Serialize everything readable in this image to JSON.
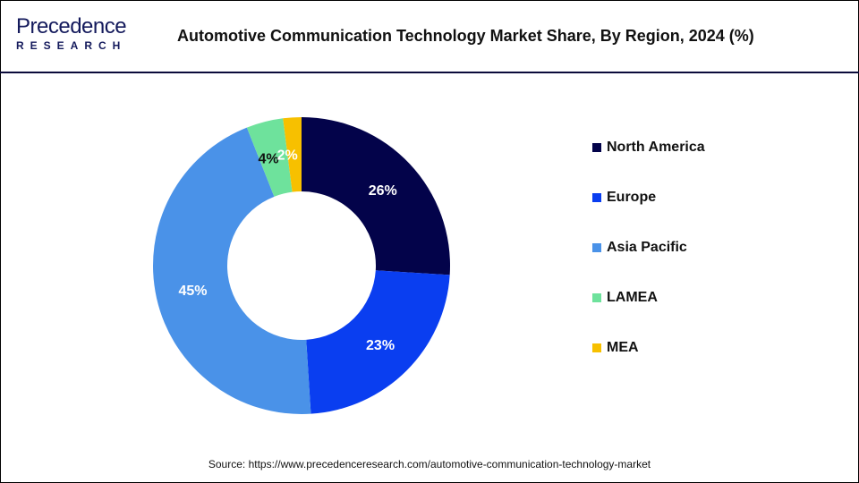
{
  "logo": {
    "text_top": "Precedence",
    "text_bottom": "RESEARCH"
  },
  "header": {
    "title": "Automotive Communication Technology Market Share, By Region, 2024 (%)"
  },
  "chart_data": {
    "type": "pie",
    "donut": true,
    "title": "Automotive Communication Technology Market Share, By Region, 2024 (%)",
    "categories": [
      "North America",
      "Europe",
      "Asia Pacific",
      "LAMEA",
      "MEA"
    ],
    "values": [
      26,
      23,
      45,
      4,
      2
    ],
    "labels": [
      "26%",
      "23%",
      "45%",
      "4%",
      "2%"
    ],
    "colors": [
      "#03034a",
      "#0a3ef0",
      "#4a92e8",
      "#6ee29c",
      "#f7c000"
    ],
    "label_colors": [
      "#ffffff",
      "#ffffff",
      "#ffffff",
      "#111111",
      "#ffffff"
    ],
    "legend_position": "right"
  },
  "source": "Source: https://www.precedenceresearch.com/automotive-communication-technology-market"
}
